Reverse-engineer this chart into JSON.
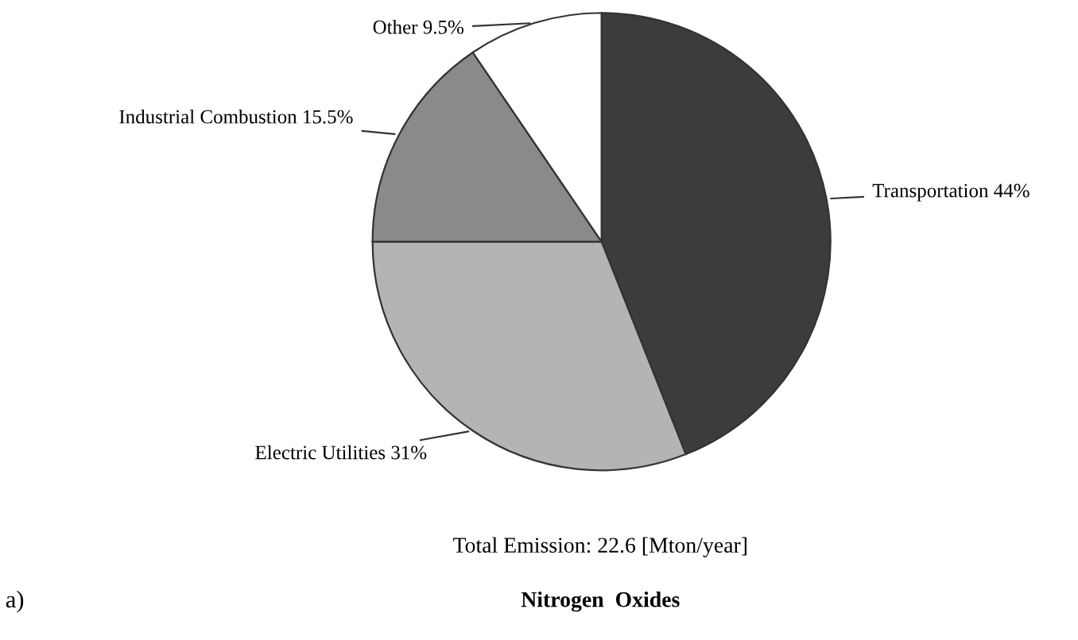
{
  "chart_data": {
    "type": "pie",
    "title": "Nitrogen  Oxides",
    "categories": [
      "Transportation",
      "Electric Utilities",
      "Industrial Combustion",
      "Other"
    ],
    "values": [
      44,
      31,
      15.5,
      9.5
    ],
    "value_labels": [
      "44%",
      "31%",
      "15.5%",
      "9.5%"
    ],
    "colors": [
      "#3c3c3c",
      "#b4b4b4",
      "#8a8a8a",
      "#ffffff"
    ],
    "annotations": [
      "Total Emission: 22.6 [Mton/year]",
      "a)"
    ]
  }
}
